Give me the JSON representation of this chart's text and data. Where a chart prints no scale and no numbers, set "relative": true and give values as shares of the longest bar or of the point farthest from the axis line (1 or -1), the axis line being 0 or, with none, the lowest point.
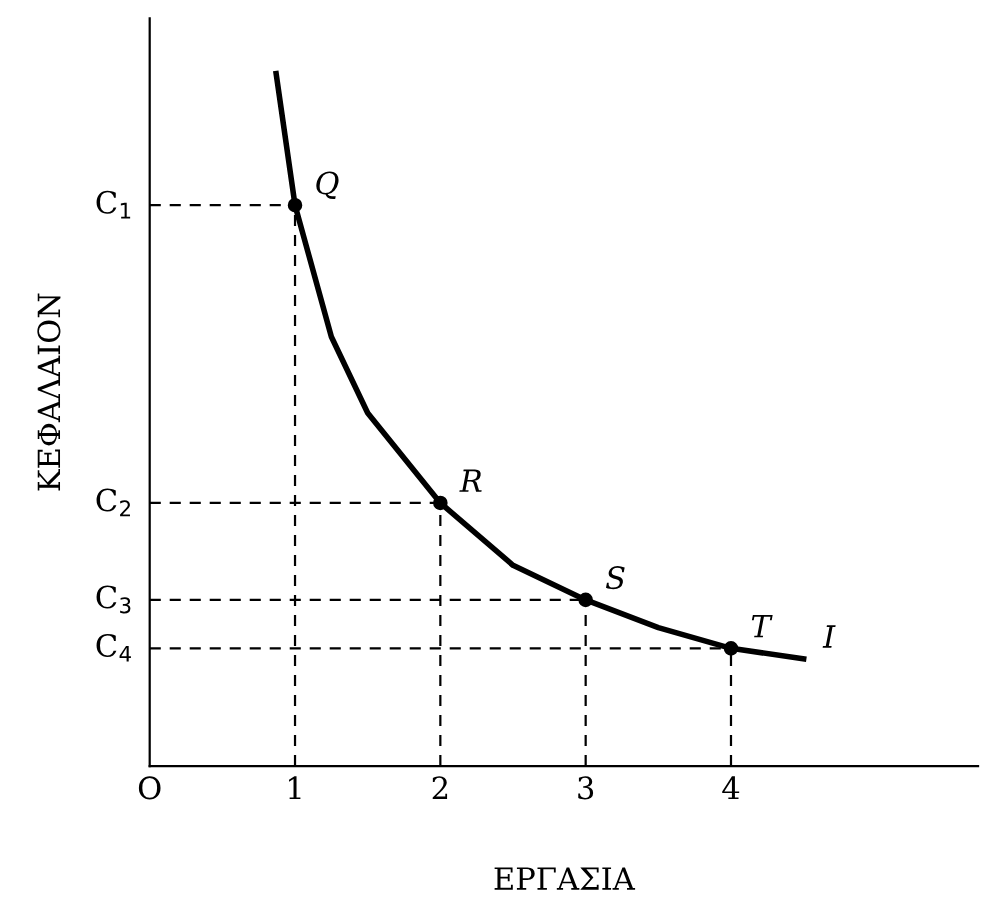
{
  "chart_data": {
    "type": "line",
    "xlabel": "ΕΡΓΑΣΙΑ",
    "ylabel": "ΚΕΦΑΛΑΙΟΝ",
    "relative": true,
    "xlim": [
      0,
      5.7
    ],
    "xticks": [
      {
        "value": 0,
        "label": "O"
      },
      1,
      2,
      3,
      4
    ],
    "series": [
      {
        "color": "#000000",
        "x": [
          0.87,
          1.0,
          1.25,
          1.5,
          2.0,
          2.5,
          3.0,
          3.5,
          4.0,
          4.5
        ],
        "values": [
          1.0,
          0.81,
          0.62,
          0.51,
          0.38,
          0.29,
          0.24,
          0.2,
          0.17,
          0.155
        ]
      },
      {
        "type": "scatter",
        "color": "#000000",
        "marker": "circle",
        "x": [
          1,
          2,
          3,
          4
        ],
        "values": [
          0.81,
          0.38,
          0.24,
          0.17
        ]
      }
    ],
    "ref_lines": [
      {
        "axis": "y",
        "value": 0.81,
        "label": "C$_{1}$",
        "line_style": "dashed",
        "color": "#000000"
      },
      {
        "axis": "y",
        "value": 0.38,
        "label": "C$_{2}$",
        "line_style": "dashed",
        "color": "#000000"
      },
      {
        "axis": "y",
        "value": 0.24,
        "label": "C$_{3}$",
        "line_style": "dashed",
        "color": "#000000"
      },
      {
        "axis": "y",
        "value": 0.17,
        "label": "C$_{4}$",
        "line_style": "dashed",
        "color": "#000000"
      },
      {
        "axis": "x",
        "value": 1,
        "line_style": "dashed",
        "color": "#000000"
      },
      {
        "axis": "x",
        "value": 2,
        "line_style": "dashed",
        "color": "#000000"
      },
      {
        "axis": "x",
        "value": 3,
        "line_style": "dashed",
        "color": "#000000"
      },
      {
        "axis": "x",
        "value": 4,
        "line_style": "dashed",
        "color": "#000000"
      }
    ],
    "annotations": [
      {
        "text": "Q",
        "x": 1,
        "y": 0.81
      },
      {
        "text": "R",
        "x": 2,
        "y": 0.38
      },
      {
        "text": "S",
        "x": 3,
        "y": 0.24
      },
      {
        "text": "T",
        "x": 4,
        "y": 0.17
      },
      {
        "text": "I",
        "x": 4.5,
        "y": 0.155
      }
    ],
    "grid": false,
    "legend": false
  }
}
